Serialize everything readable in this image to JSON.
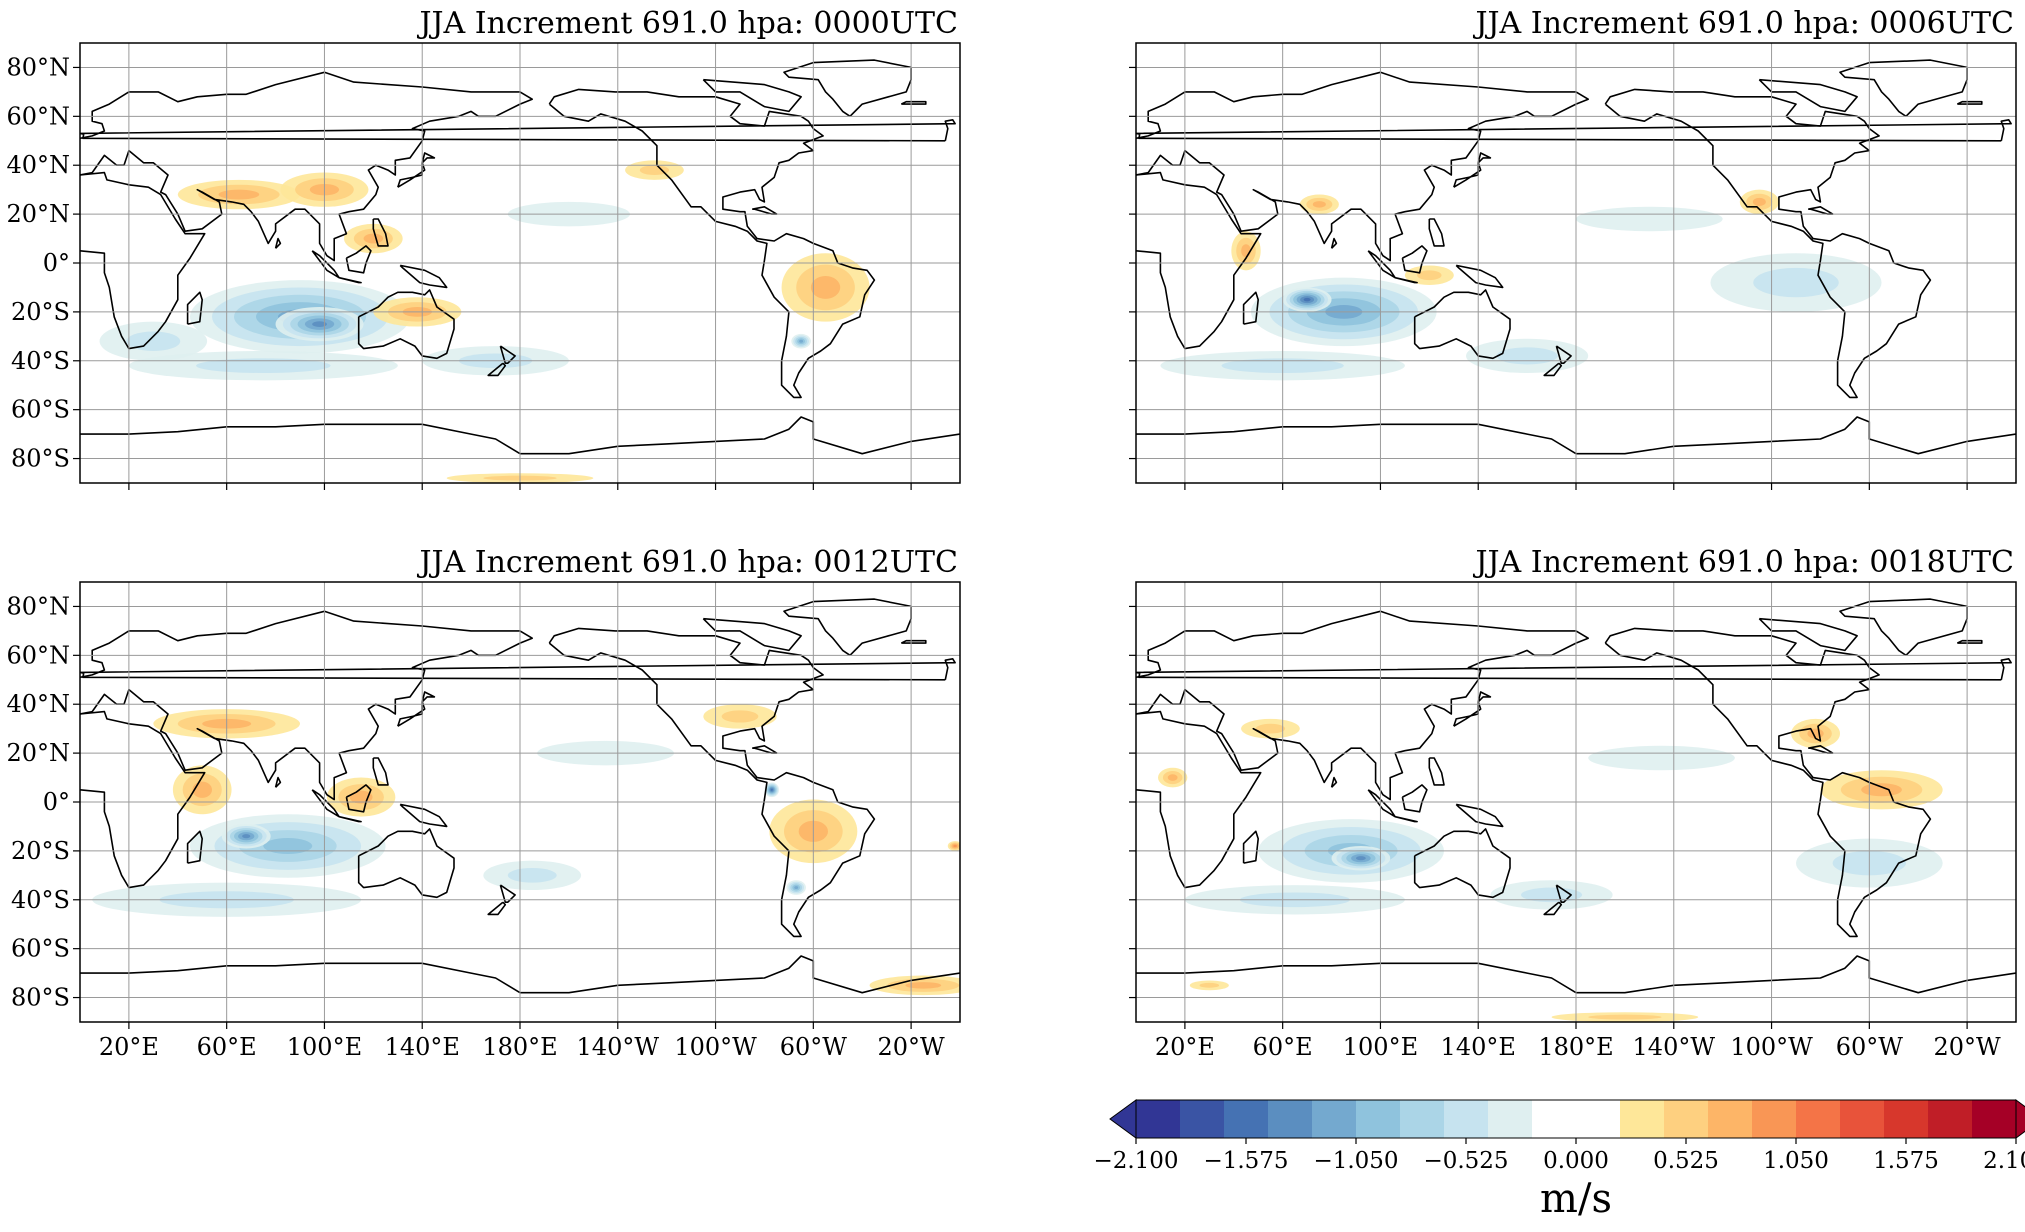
{
  "panels": [
    {
      "title": "JJA Increment 691.0 hpa: 0000UTC",
      "show_y_labels": true,
      "show_x_labels": false
    },
    {
      "title": "JJA Increment 691.0 hpa: 0006UTC",
      "show_y_labels": false,
      "show_x_labels": false
    },
    {
      "title": "JJA Increment 691.0 hpa: 0012UTC",
      "show_y_labels": true,
      "show_x_labels": true
    },
    {
      "title": "JJA Increment 691.0 hpa: 0018UTC",
      "show_y_labels": false,
      "show_x_labels": true
    }
  ],
  "axes": {
    "lon_ticks": [
      20,
      60,
      100,
      140,
      180,
      220,
      260,
      300,
      340
    ],
    "lon_tick_labels": [
      "20°E",
      "60°E",
      "100°E",
      "140°E",
      "180°E",
      "140°W",
      "100°W",
      "60°W",
      "20°W"
    ],
    "lat_ticks": [
      80,
      60,
      40,
      20,
      0,
      -20,
      -40,
      -60,
      -80
    ],
    "lat_tick_labels": [
      "80°N",
      "60°N",
      "40°N",
      "20°N",
      "0°",
      "20°S",
      "40°S",
      "60°S",
      "80°S"
    ],
    "lon_range": [
      0,
      360
    ],
    "lat_range": [
      -90,
      90
    ],
    "grid": true,
    "central_longitude": 180
  },
  "colorbar": {
    "min": -2.1,
    "max": 2.1,
    "tick_labels": [
      "−2.100",
      "−1.575",
      "−1.050",
      "−0.525",
      "0.000",
      "0.525",
      "1.050",
      "1.575",
      "2.100"
    ],
    "colors": [
      "#313695",
      "#3a54a4",
      "#4572b3",
      "#5b8ec0",
      "#74a9cf",
      "#8fc3dd",
      "#abd5e7",
      "#c6e3ef",
      "#dfeff0",
      "#ffffff",
      "#ffffff",
      "#fee799",
      "#fed080",
      "#fdb567",
      "#f99655",
      "#f47447",
      "#e8533a",
      "#d7372c",
      "#c01e27",
      "#a50026"
    ],
    "units": "m/s",
    "extend": "both"
  },
  "fields": {
    "negative_color_scale": [
      "#dfeff0",
      "#c6e3ef",
      "#abd5e7",
      "#8fc3dd",
      "#74a9cf",
      "#5b8ec0",
      "#4572b3"
    ],
    "positive_color_scale": [
      "#fee799",
      "#fed080",
      "#fdb567",
      "#f99655",
      "#f47447"
    ],
    "panel_blobs": [
      [
        {
          "lon": 90,
          "lat": -22,
          "rx": 45,
          "ry": 15,
          "v": -0.9
        },
        {
          "lon": 98,
          "lat": -25,
          "rx": 18,
          "ry": 7,
          "v": -1.2
        },
        {
          "lon": 75,
          "lat": -42,
          "rx": 55,
          "ry": 6,
          "v": -0.3
        },
        {
          "lon": 30,
          "lat": -32,
          "rx": 22,
          "ry": 8,
          "v": -0.3
        },
        {
          "lon": 170,
          "lat": -40,
          "rx": 30,
          "ry": 6,
          "v": -0.25
        },
        {
          "lon": 65,
          "lat": 28,
          "rx": 25,
          "ry": 6,
          "v": 0.5
        },
        {
          "lon": 100,
          "lat": 30,
          "rx": 18,
          "ry": 7,
          "v": 0.5
        },
        {
          "lon": 120,
          "lat": 10,
          "rx": 12,
          "ry": 6,
          "v": 0.45
        },
        {
          "lon": 138,
          "lat": -20,
          "rx": 18,
          "ry": 6,
          "v": 0.45
        },
        {
          "lon": 305,
          "lat": -10,
          "rx": 18,
          "ry": 14,
          "v": 0.55
        },
        {
          "lon": 295,
          "lat": -32,
          "rx": 4,
          "ry": 3,
          "v": -1.0
        },
        {
          "lon": 235,
          "lat": 38,
          "rx": 12,
          "ry": 4,
          "v": 0.4
        },
        {
          "lon": 180,
          "lat": -88,
          "rx": 30,
          "ry": 2,
          "v": 0.4
        },
        {
          "lon": 200,
          "lat": 20,
          "rx": 25,
          "ry": 5,
          "v": -0.2
        }
      ],
      [
        {
          "lon": 85,
          "lat": -20,
          "rx": 38,
          "ry": 14,
          "v": -0.85
        },
        {
          "lon": 70,
          "lat": -15,
          "rx": 10,
          "ry": 5,
          "v": -1.3
        },
        {
          "lon": 60,
          "lat": -42,
          "rx": 50,
          "ry": 6,
          "v": -0.3
        },
        {
          "lon": 160,
          "lat": -38,
          "rx": 25,
          "ry": 7,
          "v": -0.3
        },
        {
          "lon": 45,
          "lat": 5,
          "rx": 6,
          "ry": 8,
          "v": 0.5
        },
        {
          "lon": 75,
          "lat": 24,
          "rx": 8,
          "ry": 4,
          "v": 0.45
        },
        {
          "lon": 120,
          "lat": -5,
          "rx": 10,
          "ry": 4,
          "v": 0.4
        },
        {
          "lon": 255,
          "lat": 25,
          "rx": 8,
          "ry": 5,
          "v": 0.45
        },
        {
          "lon": 270,
          "lat": -8,
          "rx": 35,
          "ry": 12,
          "v": -0.35
        },
        {
          "lon": 210,
          "lat": 18,
          "rx": 30,
          "ry": 5,
          "v": -0.2
        }
      ],
      [
        {
          "lon": 85,
          "lat": -18,
          "rx": 40,
          "ry": 13,
          "v": -0.8
        },
        {
          "lon": 68,
          "lat": -14,
          "rx": 10,
          "ry": 5,
          "v": -1.1
        },
        {
          "lon": 60,
          "lat": -40,
          "rx": 55,
          "ry": 7,
          "v": -0.3
        },
        {
          "lon": 185,
          "lat": -30,
          "rx": 20,
          "ry": 6,
          "v": -0.3
        },
        {
          "lon": 50,
          "lat": 5,
          "rx": 12,
          "ry": 10,
          "v": 0.5
        },
        {
          "lon": 60,
          "lat": 32,
          "rx": 30,
          "ry": 6,
          "v": 0.45
        },
        {
          "lon": 115,
          "lat": 2,
          "rx": 14,
          "ry": 8,
          "v": 0.5
        },
        {
          "lon": 300,
          "lat": -12,
          "rx": 18,
          "ry": 13,
          "v": 0.6
        },
        {
          "lon": 283,
          "lat": 5,
          "rx": 3,
          "ry": 3,
          "v": -1.4
        },
        {
          "lon": 293,
          "lat": -35,
          "rx": 4,
          "ry": 3,
          "v": -1.0
        },
        {
          "lon": 270,
          "lat": 35,
          "rx": 15,
          "ry": 5,
          "v": 0.4
        },
        {
          "lon": 345,
          "lat": -75,
          "rx": 22,
          "ry": 4,
          "v": 0.45
        },
        {
          "lon": 358,
          "lat": -18,
          "rx": 3,
          "ry": 2,
          "v": 0.8
        },
        {
          "lon": 215,
          "lat": 20,
          "rx": 28,
          "ry": 5,
          "v": -0.2
        }
      ],
      [
        {
          "lon": 88,
          "lat": -20,
          "rx": 38,
          "ry": 13,
          "v": -0.75
        },
        {
          "lon": 92,
          "lat": -23,
          "rx": 12,
          "ry": 5,
          "v": -1.05
        },
        {
          "lon": 65,
          "lat": -40,
          "rx": 45,
          "ry": 6,
          "v": -0.25
        },
        {
          "lon": 170,
          "lat": -38,
          "rx": 25,
          "ry": 6,
          "v": -0.3
        },
        {
          "lon": 305,
          "lat": 5,
          "rx": 25,
          "ry": 8,
          "v": 0.5
        },
        {
          "lon": 278,
          "lat": 28,
          "rx": 10,
          "ry": 6,
          "v": 0.55
        },
        {
          "lon": 15,
          "lat": 10,
          "rx": 6,
          "ry": 4,
          "v": 0.5
        },
        {
          "lon": 55,
          "lat": 30,
          "rx": 12,
          "ry": 4,
          "v": 0.4
        },
        {
          "lon": 200,
          "lat": -88,
          "rx": 30,
          "ry": 2,
          "v": 0.35
        },
        {
          "lon": 30,
          "lat": -75,
          "rx": 8,
          "ry": 2,
          "v": 0.4
        },
        {
          "lon": 215,
          "lat": 18,
          "rx": 30,
          "ry": 5,
          "v": -0.2
        },
        {
          "lon": 300,
          "lat": -25,
          "rx": 30,
          "ry": 10,
          "v": -0.25
        }
      ]
    ]
  }
}
